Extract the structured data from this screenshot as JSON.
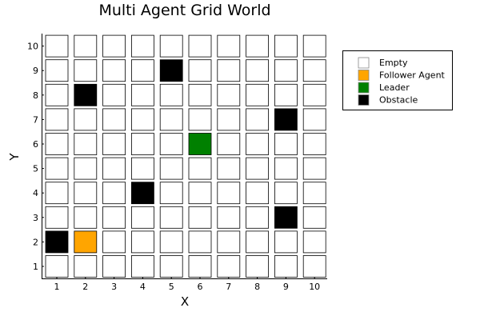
{
  "chart_data": {
    "type": "heatmap",
    "title": "Multi Agent Grid World",
    "xlabel": "X",
    "ylabel": "Y",
    "x_ticks": [
      "1",
      "2",
      "3",
      "4",
      "5",
      "6",
      "7",
      "8",
      "9",
      "10"
    ],
    "y_ticks": [
      "1",
      "2",
      "3",
      "4",
      "5",
      "6",
      "7",
      "8",
      "9",
      "10"
    ],
    "grid_size": [
      10,
      10
    ],
    "legend": [
      {
        "key": "empty",
        "label": "Empty",
        "color": "#ffffff"
      },
      {
        "key": "follower",
        "label": "Follower Agent",
        "color": "#ffa500"
      },
      {
        "key": "leader",
        "label": "Leader",
        "color": "#008000"
      },
      {
        "key": "obstacle",
        "label": "Obstacle",
        "color": "#000000"
      }
    ],
    "legend_position": "top-right",
    "cells": [
      {
        "x": 1,
        "y": 2,
        "type": "obstacle"
      },
      {
        "x": 2,
        "y": 8,
        "type": "obstacle"
      },
      {
        "x": 4,
        "y": 4,
        "type": "obstacle"
      },
      {
        "x": 5,
        "y": 9,
        "type": "obstacle"
      },
      {
        "x": 9,
        "y": 7,
        "type": "obstacle"
      },
      {
        "x": 9,
        "y": 3,
        "type": "obstacle"
      },
      {
        "x": 2,
        "y": 2,
        "type": "follower"
      },
      {
        "x": 6,
        "y": 6,
        "type": "leader"
      }
    ],
    "default_cell": "empty"
  }
}
